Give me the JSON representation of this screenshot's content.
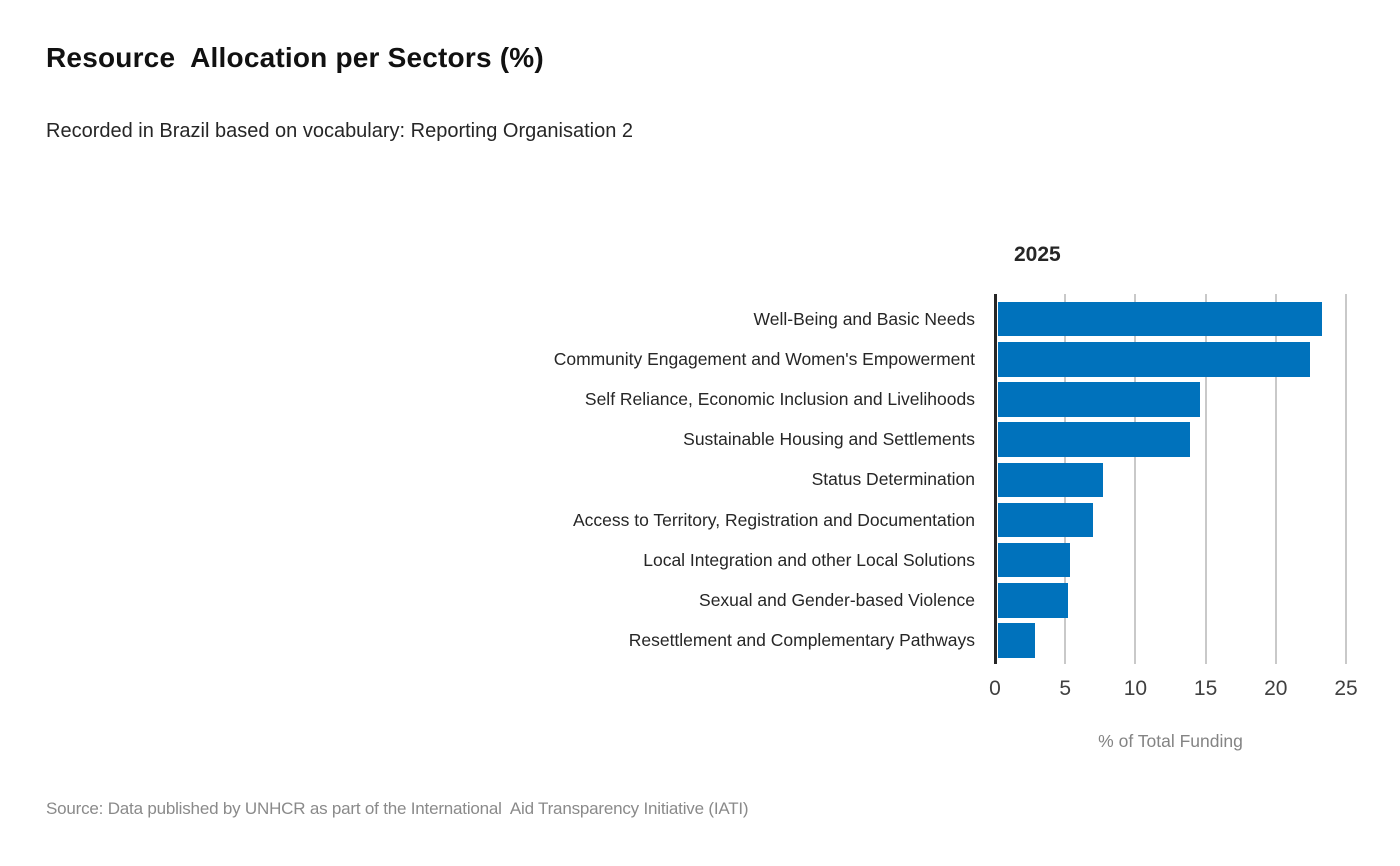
{
  "page": {
    "title": "Resource  Allocation per Sectors (%)",
    "subtitle": "Recorded in Brazil based on vocabulary: Reporting Organisation 2",
    "source": "Source: Data published by UNHCR as part of the International  Aid Transparency Initiative (IATI)"
  },
  "chart_data": {
    "type": "bar",
    "orientation": "horizontal",
    "column_header": "2025",
    "categories": [
      "Well-Being and Basic Needs",
      "Community Engagement and Women's Empowerment",
      "Self Reliance, Economic Inclusion and Livelihoods",
      "Sustainable Housing and Settlements",
      "Status Determination",
      "Access to Territory, Registration and Documentation",
      "Local Integration and other Local Solutions",
      "Sexual and Gender-based Violence",
      "Resettlement and Complementary Pathways"
    ],
    "values": [
      23.1,
      22.2,
      14.4,
      13.7,
      7.5,
      6.8,
      5.1,
      5.0,
      2.6
    ],
    "xlabel": "% of Total Funding",
    "xticks": [
      0,
      5,
      10,
      15,
      20,
      25
    ],
    "xlim": [
      0,
      26.5
    ],
    "grid": "vertical-gridlines",
    "legend": "none",
    "bar_color": "#0072bc",
    "axis_line_color": "#262626",
    "gridline_color": "#c9c9c9"
  }
}
